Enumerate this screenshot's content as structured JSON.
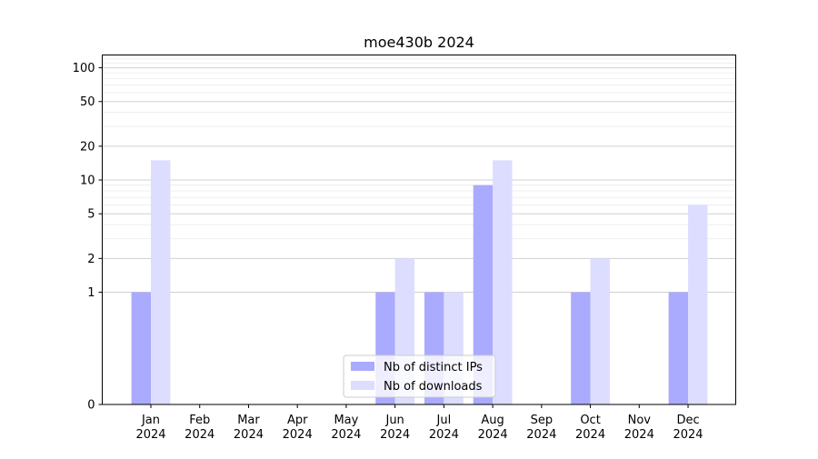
{
  "chart_data": {
    "type": "bar",
    "title": "moe430b 2024",
    "xlabel": "",
    "ylabel": "",
    "yscale": "symlog",
    "ylim": [
      0,
      130
    ],
    "y_ticks": [
      0,
      1,
      2,
      5,
      10,
      20,
      50,
      100
    ],
    "y_tick_labels": [
      "0",
      "1",
      "2",
      "5",
      "10",
      "20",
      "50",
      "100"
    ],
    "categories": [
      "Jan\n2024",
      "Feb\n2024",
      "Mar\n2024",
      "Apr\n2024",
      "May\n2024",
      "Jun\n2024",
      "Jul\n2024",
      "Aug\n2024",
      "Sep\n2024",
      "Oct\n2024",
      "Nov\n2024",
      "Dec\n2024"
    ],
    "series": [
      {
        "name": "Nb of distinct IPs",
        "color": "#aaaaff",
        "values": [
          1,
          0,
          0,
          0,
          0,
          1,
          1,
          9,
          0,
          1,
          0,
          1
        ]
      },
      {
        "name": "Nb of downloads",
        "color": "#ddddff",
        "values": [
          15,
          0,
          0,
          0,
          0,
          2,
          1,
          15,
          0,
          2,
          0,
          6
        ]
      }
    ],
    "grid": "horizontal",
    "legend_position": "lower-center"
  }
}
